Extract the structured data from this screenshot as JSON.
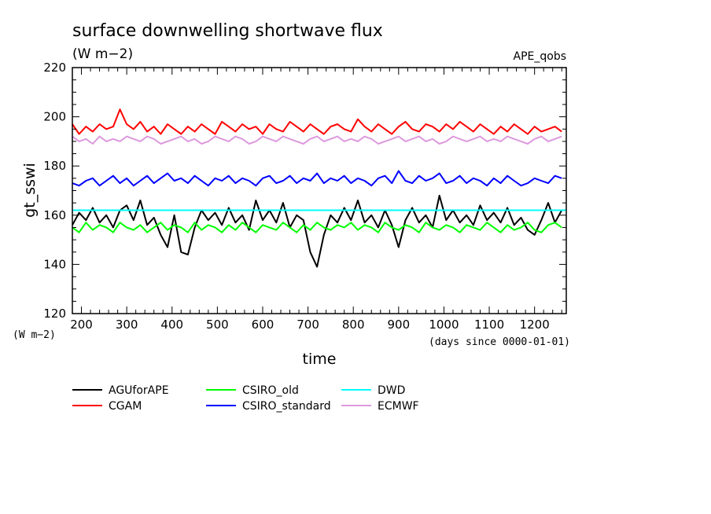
{
  "chart_data": {
    "type": "line",
    "title": "surface downwelling shortwave flux",
    "subtitle": "(W m−2)",
    "tag": "APE_qobs",
    "ylabel": "gt_sswi",
    "yunit": "(W m−2)",
    "xlabel": "time",
    "xunit": "(days since 0000-01-01)",
    "xlim": [
      180,
      1270
    ],
    "ylim": [
      120,
      220
    ],
    "xticks": [
      200,
      300,
      400,
      500,
      600,
      700,
      800,
      900,
      1000,
      1100,
      1200
    ],
    "yticks": [
      120,
      140,
      160,
      180,
      200,
      220
    ],
    "legend_position": "bottom",
    "series": [
      {
        "name": "AGUforAPE",
        "color": "#000000",
        "x": [
          180,
          195,
          210,
          225,
          240,
          255,
          270,
          285,
          300,
          315,
          330,
          345,
          360,
          375,
          390,
          405,
          420,
          435,
          450,
          465,
          480,
          495,
          510,
          525,
          540,
          555,
          570,
          585,
          600,
          615,
          630,
          645,
          660,
          675,
          690,
          705,
          720,
          735,
          750,
          765,
          780,
          795,
          810,
          825,
          840,
          855,
          870,
          885,
          900,
          915,
          930,
          945,
          960,
          975,
          990,
          1005,
          1020,
          1035,
          1050,
          1065,
          1080,
          1095,
          1110,
          1125,
          1140,
          1155,
          1170,
          1185,
          1200,
          1215,
          1230,
          1245,
          1260
        ],
        "y": [
          156,
          161,
          158,
          163,
          157,
          160,
          155,
          162,
          164,
          158,
          166,
          156,
          159,
          152,
          147,
          160,
          145,
          144,
          155,
          162,
          158,
          161,
          156,
          163,
          157,
          160,
          154,
          166,
          158,
          162,
          157,
          165,
          155,
          160,
          158,
          145,
          139,
          152,
          160,
          157,
          163,
          158,
          166,
          157,
          160,
          155,
          162,
          156,
          147,
          158,
          163,
          157,
          160,
          155,
          168,
          158,
          162,
          157,
          160,
          156,
          164,
          158,
          161,
          157,
          163,
          156,
          159,
          154,
          152,
          158,
          165,
          157,
          162
        ]
      },
      {
        "name": "CGAM",
        "color": "#ff0000",
        "x": [
          180,
          195,
          210,
          225,
          240,
          255,
          270,
          285,
          300,
          315,
          330,
          345,
          360,
          375,
          390,
          405,
          420,
          435,
          450,
          465,
          480,
          495,
          510,
          525,
          540,
          555,
          570,
          585,
          600,
          615,
          630,
          645,
          660,
          675,
          690,
          705,
          720,
          735,
          750,
          765,
          780,
          795,
          810,
          825,
          840,
          855,
          870,
          885,
          900,
          915,
          930,
          945,
          960,
          975,
          990,
          1005,
          1020,
          1035,
          1050,
          1065,
          1080,
          1095,
          1110,
          1125,
          1140,
          1155,
          1170,
          1185,
          1200,
          1215,
          1230,
          1245,
          1260
        ],
        "y": [
          197,
          193,
          196,
          194,
          197,
          195,
          196,
          203,
          197,
          195,
          198,
          194,
          196,
          193,
          197,
          195,
          193,
          196,
          194,
          197,
          195,
          193,
          198,
          196,
          194,
          197,
          195,
          196,
          193,
          197,
          195,
          194,
          198,
          196,
          194,
          197,
          195,
          193,
          196,
          197,
          195,
          194,
          199,
          196,
          194,
          197,
          195,
          193,
          196,
          198,
          195,
          194,
          197,
          196,
          194,
          197,
          195,
          198,
          196,
          194,
          197,
          195,
          193,
          196,
          194,
          197,
          195,
          193,
          196,
          194,
          195,
          196,
          194
        ]
      },
      {
        "name": "CSIRO_old",
        "color": "#00ff00",
        "x": [
          180,
          195,
          210,
          225,
          240,
          255,
          270,
          285,
          300,
          315,
          330,
          345,
          360,
          375,
          390,
          405,
          420,
          435,
          450,
          465,
          480,
          495,
          510,
          525,
          540,
          555,
          570,
          585,
          600,
          615,
          630,
          645,
          660,
          675,
          690,
          705,
          720,
          735,
          750,
          765,
          780,
          795,
          810,
          825,
          840,
          855,
          870,
          885,
          900,
          915,
          930,
          945,
          960,
          975,
          990,
          1005,
          1020,
          1035,
          1050,
          1065,
          1080,
          1095,
          1110,
          1125,
          1140,
          1155,
          1170,
          1185,
          1200,
          1215,
          1230,
          1245,
          1260
        ],
        "y": [
          155,
          153,
          157,
          154,
          156,
          155,
          153,
          157,
          155,
          154,
          156,
          153,
          155,
          157,
          154,
          156,
          155,
          153,
          157,
          154,
          156,
          155,
          153,
          156,
          154,
          157,
          155,
          153,
          156,
          155,
          154,
          157,
          155,
          153,
          156,
          154,
          157,
          155,
          154,
          156,
          155,
          157,
          154,
          156,
          155,
          153,
          157,
          155,
          154,
          156,
          155,
          153,
          157,
          155,
          154,
          156,
          155,
          153,
          156,
          155,
          154,
          157,
          155,
          153,
          156,
          154,
          155,
          157,
          154,
          153,
          156,
          157,
          155
        ]
      },
      {
        "name": "CSIRO_standard",
        "color": "#0000ff",
        "x": [
          180,
          195,
          210,
          225,
          240,
          255,
          270,
          285,
          300,
          315,
          330,
          345,
          360,
          375,
          390,
          405,
          420,
          435,
          450,
          465,
          480,
          495,
          510,
          525,
          540,
          555,
          570,
          585,
          600,
          615,
          630,
          645,
          660,
          675,
          690,
          705,
          720,
          735,
          750,
          765,
          780,
          795,
          810,
          825,
          840,
          855,
          870,
          885,
          900,
          915,
          930,
          945,
          960,
          975,
          990,
          1005,
          1020,
          1035,
          1050,
          1065,
          1080,
          1095,
          1110,
          1125,
          1140,
          1155,
          1170,
          1185,
          1200,
          1215,
          1230,
          1245,
          1260
        ],
        "y": [
          173,
          172,
          174,
          175,
          172,
          174,
          176,
          173,
          175,
          172,
          174,
          176,
          173,
          175,
          177,
          174,
          175,
          173,
          176,
          174,
          172,
          175,
          174,
          176,
          173,
          175,
          174,
          172,
          175,
          176,
          173,
          174,
          176,
          173,
          175,
          174,
          177,
          173,
          175,
          174,
          176,
          173,
          175,
          174,
          172,
          175,
          176,
          173,
          178,
          174,
          173,
          176,
          174,
          175,
          177,
          173,
          174,
          176,
          173,
          175,
          174,
          172,
          175,
          173,
          176,
          174,
          172,
          173,
          175,
          174,
          173,
          176,
          175
        ]
      },
      {
        "name": "DWD",
        "color": "#00ffff",
        "x": [
          180,
          1270
        ],
        "y": [
          162,
          162
        ]
      },
      {
        "name": "ECMWF",
        "color": "#dd99dd",
        "x": [
          180,
          195,
          210,
          225,
          240,
          255,
          270,
          285,
          300,
          315,
          330,
          345,
          360,
          375,
          390,
          405,
          420,
          435,
          450,
          465,
          480,
          495,
          510,
          525,
          540,
          555,
          570,
          585,
          600,
          615,
          630,
          645,
          660,
          675,
          690,
          705,
          720,
          735,
          750,
          765,
          780,
          795,
          810,
          825,
          840,
          855,
          870,
          885,
          900,
          915,
          930,
          945,
          960,
          975,
          990,
          1005,
          1020,
          1035,
          1050,
          1065,
          1080,
          1095,
          1110,
          1125,
          1140,
          1155,
          1170,
          1185,
          1200,
          1215,
          1230,
          1245,
          1260
        ],
        "y": [
          192,
          190,
          191,
          189,
          192,
          190,
          191,
          190,
          192,
          191,
          190,
          192,
          191,
          189,
          190,
          191,
          192,
          190,
          191,
          189,
          190,
          192,
          191,
          190,
          192,
          191,
          189,
          190,
          192,
          191,
          190,
          192,
          191,
          190,
          189,
          191,
          192,
          190,
          191,
          192,
          190,
          191,
          190,
          192,
          191,
          189,
          190,
          191,
          192,
          190,
          191,
          192,
          190,
          191,
          189,
          190,
          192,
          191,
          190,
          191,
          192,
          190,
          191,
          190,
          192,
          191,
          190,
          189,
          191,
          192,
          190,
          191,
          192
        ]
      }
    ]
  }
}
